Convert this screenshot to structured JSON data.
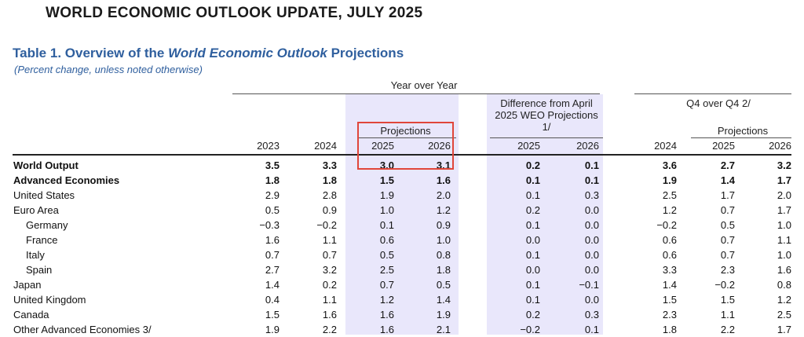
{
  "document": {
    "title": "WORLD ECONOMIC OUTLOOK UPDATE, JULY 2025",
    "table_title_pre": "Table 1. Overview of the ",
    "table_title_italic": "World Economic Outlook",
    "table_title_post": " Projections",
    "table_subtitle": "(Percent change, unless noted otherwise)"
  },
  "headers": {
    "year_over_year": "Year over Year",
    "projections": "Projections",
    "difference": "Difference from April 2025 WEO Projections 1/",
    "q4_over_q4": "Q4 over Q4 2/",
    "q4_projections": "Projections",
    "years": [
      "2023",
      "2024",
      "2025",
      "2026",
      "2025",
      "2026",
      "2024",
      "2025",
      "2026"
    ]
  },
  "rows": [
    {
      "label": "World Output",
      "bold": true,
      "indent": false,
      "values": [
        "3.5",
        "3.3",
        "3.0",
        "3.1",
        "0.2",
        "0.1",
        "3.6",
        "2.7",
        "3.2"
      ]
    },
    {
      "label": "Advanced Economies",
      "bold": true,
      "indent": false,
      "values": [
        "1.8",
        "1.8",
        "1.5",
        "1.6",
        "0.1",
        "0.1",
        "1.9",
        "1.4",
        "1.7"
      ]
    },
    {
      "label": "United States",
      "bold": false,
      "indent": false,
      "values": [
        "2.9",
        "2.8",
        "1.9",
        "2.0",
        "0.1",
        "0.3",
        "2.5",
        "1.7",
        "2.0"
      ]
    },
    {
      "label": "Euro Area",
      "bold": false,
      "indent": false,
      "values": [
        "0.5",
        "0.9",
        "1.0",
        "1.2",
        "0.2",
        "0.0",
        "1.2",
        "0.7",
        "1.7"
      ]
    },
    {
      "label": "Germany",
      "bold": false,
      "indent": true,
      "values": [
        "−0.3",
        "−0.2",
        "0.1",
        "0.9",
        "0.1",
        "0.0",
        "−0.2",
        "0.5",
        "1.0"
      ]
    },
    {
      "label": "France",
      "bold": false,
      "indent": true,
      "values": [
        "1.6",
        "1.1",
        "0.6",
        "1.0",
        "0.0",
        "0.0",
        "0.6",
        "0.7",
        "1.1"
      ]
    },
    {
      "label": "Italy",
      "bold": false,
      "indent": true,
      "values": [
        "0.7",
        "0.7",
        "0.5",
        "0.8",
        "0.1",
        "0.0",
        "0.6",
        "0.7",
        "1.0"
      ]
    },
    {
      "label": "Spain",
      "bold": false,
      "indent": true,
      "values": [
        "2.7",
        "3.2",
        "2.5",
        "1.8",
        "0.0",
        "0.0",
        "3.3",
        "2.3",
        "1.6"
      ]
    },
    {
      "label": "Japan",
      "bold": false,
      "indent": false,
      "values": [
        "1.4",
        "0.2",
        "0.7",
        "0.5",
        "0.1",
        "−0.1",
        "1.4",
        "−0.2",
        "0.8"
      ]
    },
    {
      "label": "United Kingdom",
      "bold": false,
      "indent": false,
      "values": [
        "0.4",
        "1.1",
        "1.2",
        "1.4",
        "0.1",
        "0.0",
        "1.5",
        "1.5",
        "1.2"
      ]
    },
    {
      "label": "Canada",
      "bold": false,
      "indent": false,
      "values": [
        "1.5",
        "1.6",
        "1.6",
        "1.9",
        "0.2",
        "0.3",
        "2.3",
        "1.1",
        "2.5"
      ]
    },
    {
      "label": "Other Advanced Economies 3/",
      "bold": false,
      "indent": false,
      "values": [
        "1.9",
        "2.2",
        "1.6",
        "2.1",
        "−0.2",
        "0.1",
        "1.8",
        "2.2",
        "1.7"
      ]
    }
  ],
  "highlight_color": "#e0463a",
  "band_color": "#e9e7fb",
  "title_color": "#2f5f9e"
}
